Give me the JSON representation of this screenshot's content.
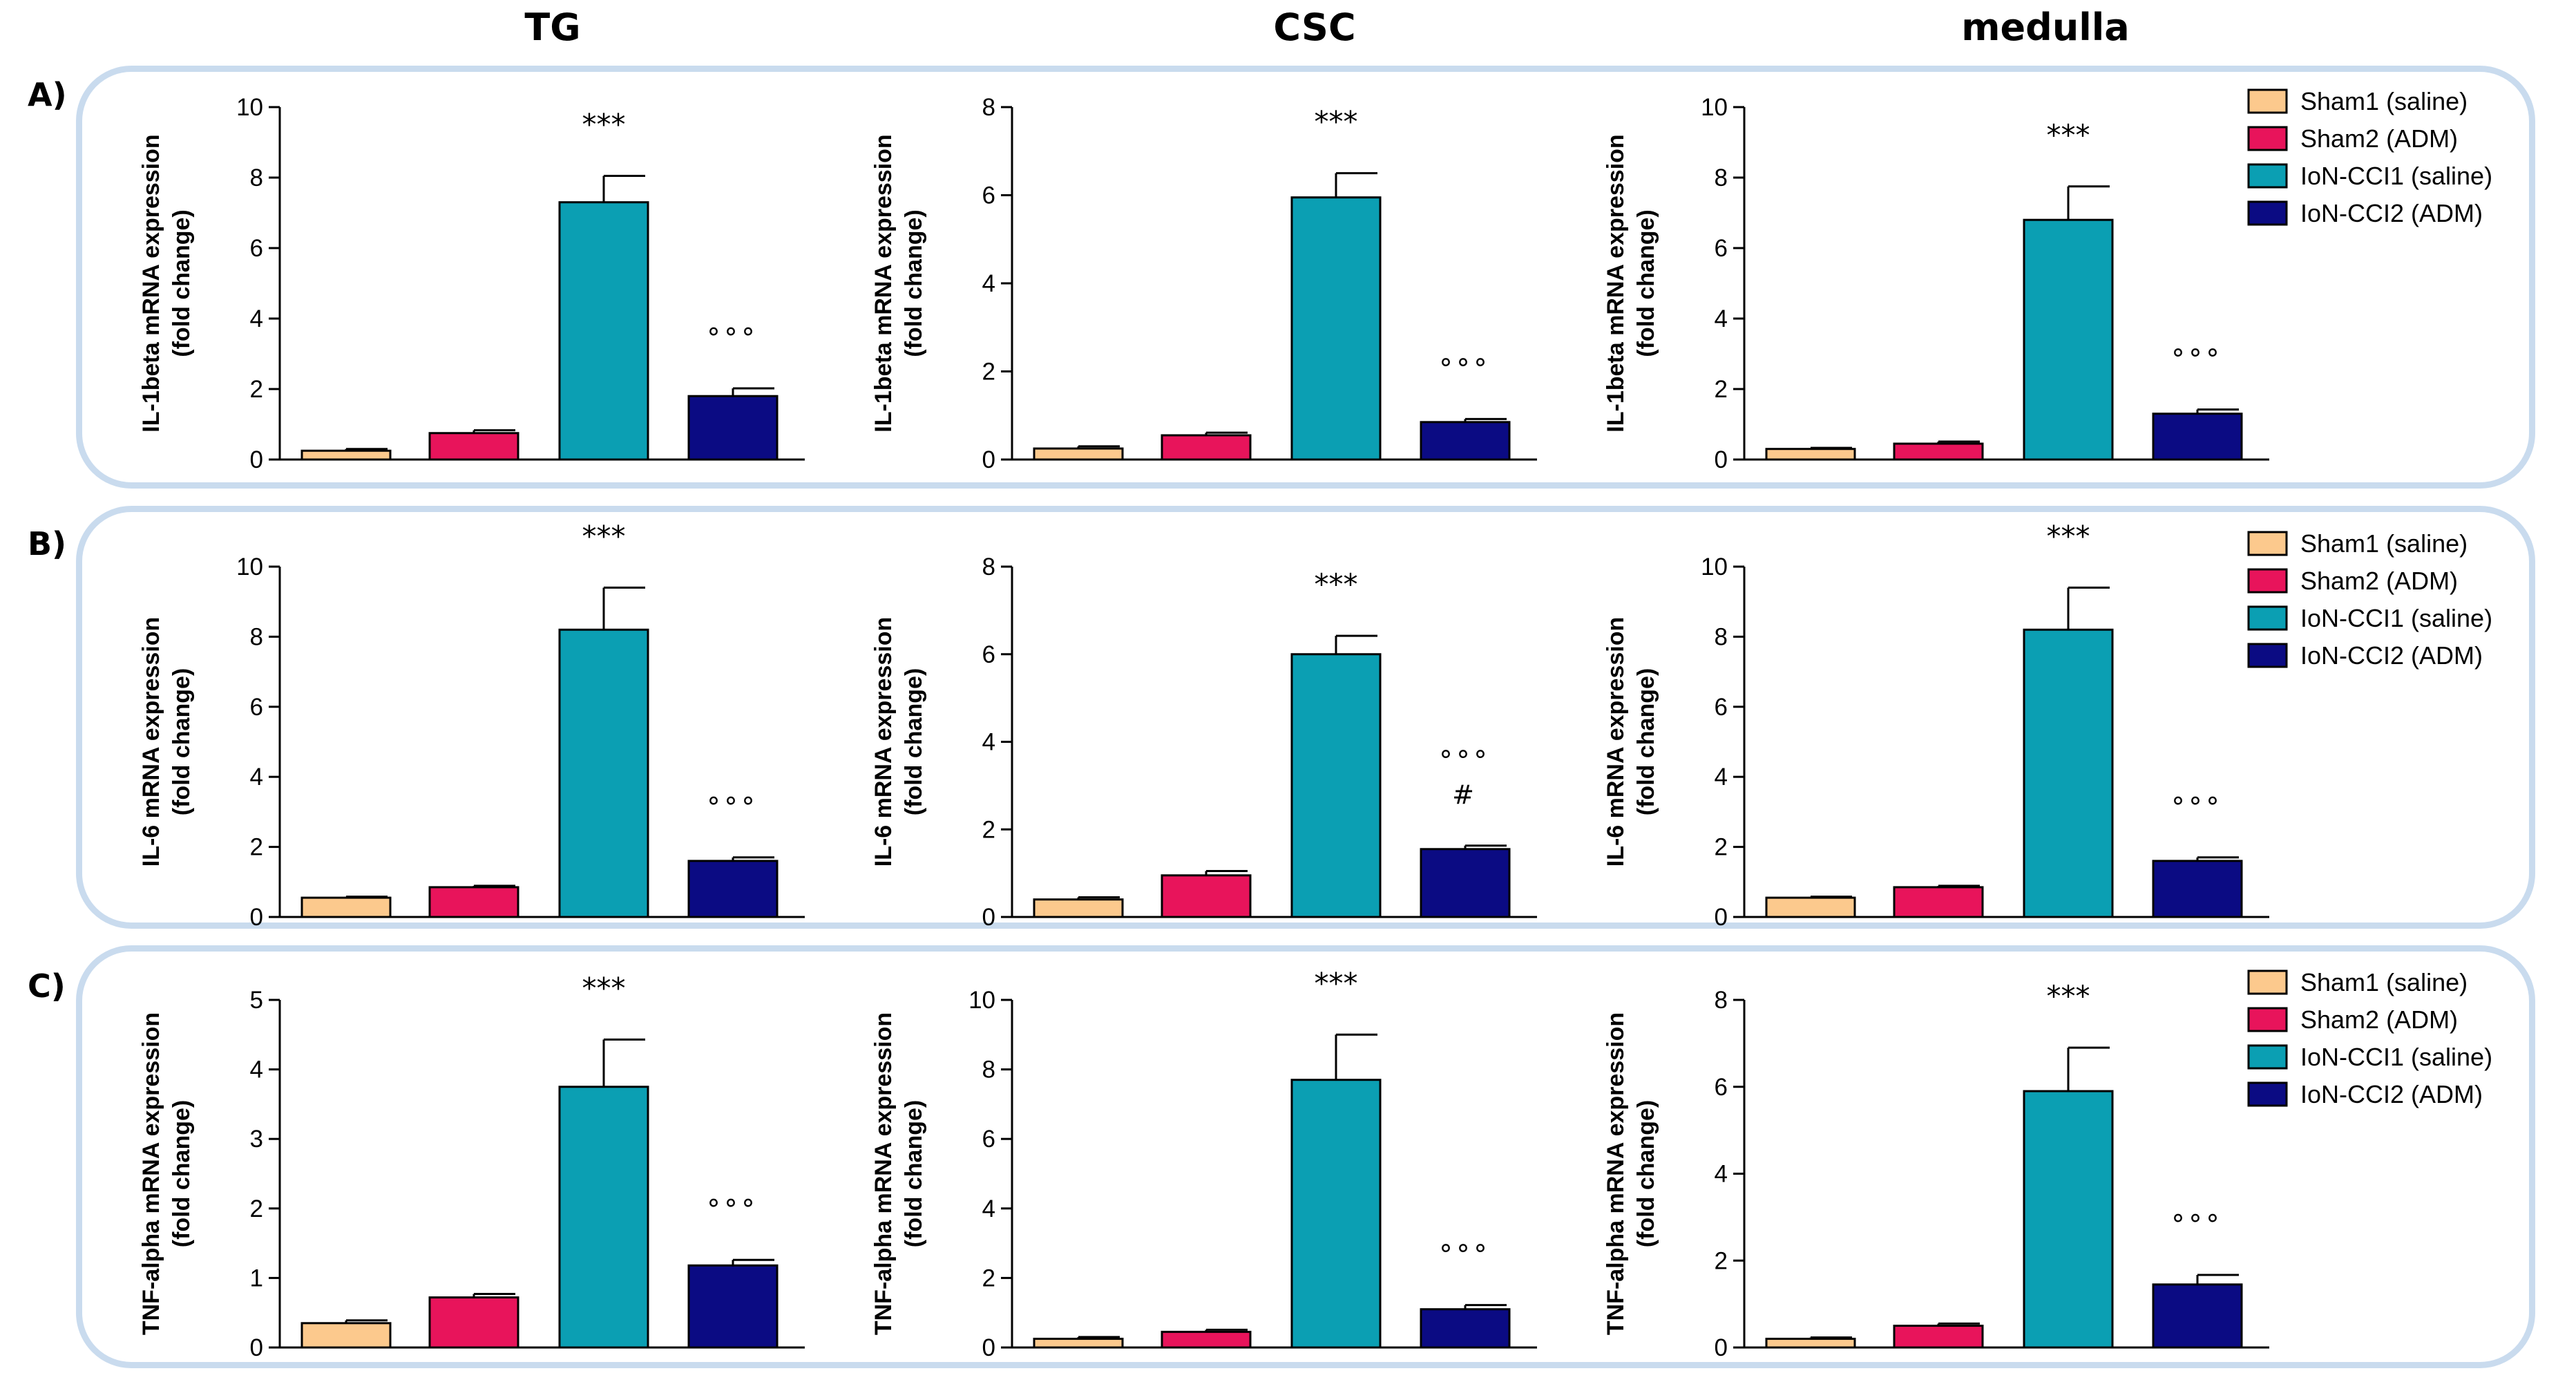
{
  "columns": [
    "TG",
    "CSC",
    "medulla"
  ],
  "rows": [
    "A)",
    "B)",
    "C)"
  ],
  "legend": [
    {
      "label": "Sham1 (saline)",
      "color": "#fcc98d"
    },
    {
      "label": "Sham2 (ADM)",
      "color": "#e8145b"
    },
    {
      "label": "IoN-CCI1 (saline)",
      "color": "#0b9fb3"
    },
    {
      "label": "IoN-CCI2 (ADM)",
      "color": "#0b0b83"
    }
  ],
  "chart_data": [
    {
      "type": "bar",
      "row": "A)",
      "column": "TG",
      "ylabel": [
        "IL-1beta mRNA expression",
        "(fold change)"
      ],
      "ylim": [
        0,
        10
      ],
      "yticks": [
        0,
        2,
        4,
        6,
        8,
        10
      ],
      "categories": [
        "Sham1 (saline)",
        "Sham2 (ADM)",
        "IoN-CCI1 (saline)",
        "IoN-CCI2 (ADM)"
      ],
      "values": [
        0.25,
        0.75,
        7.3,
        1.8
      ],
      "errors": [
        0.05,
        0.08,
        0.75,
        0.22
      ],
      "annotations": [
        "",
        "",
        "***",
        "°°°"
      ]
    },
    {
      "type": "bar",
      "row": "A)",
      "column": "CSC",
      "ylabel": [
        "IL-1beta mRNA expression",
        "(fold change)"
      ],
      "ylim": [
        0,
        8
      ],
      "yticks": [
        0,
        2,
        4,
        6,
        8
      ],
      "categories": [
        "Sham1 (saline)",
        "Sham2 (ADM)",
        "IoN-CCI1 (saline)",
        "IoN-CCI2 (ADM)"
      ],
      "values": [
        0.25,
        0.55,
        5.95,
        0.85
      ],
      "errors": [
        0.05,
        0.06,
        0.55,
        0.07
      ],
      "annotations": [
        "",
        "",
        "***",
        "°°°"
      ]
    },
    {
      "type": "bar",
      "row": "A)",
      "column": "medulla",
      "ylabel": [
        "IL-1beta mRNA expression",
        "(fold change)"
      ],
      "ylim": [
        0,
        10
      ],
      "yticks": [
        0,
        2,
        4,
        6,
        8,
        10
      ],
      "categories": [
        "Sham1 (saline)",
        "Sham2 (ADM)",
        "IoN-CCI1 (saline)",
        "IoN-CCI2 (ADM)"
      ],
      "values": [
        0.3,
        0.45,
        6.8,
        1.3
      ],
      "errors": [
        0.03,
        0.06,
        0.95,
        0.12
      ],
      "annotations": [
        "",
        "",
        "***",
        "°°°"
      ]
    },
    {
      "type": "bar",
      "row": "B)",
      "column": "TG",
      "ylabel": [
        "IL-6 mRNA expression",
        "(fold change)"
      ],
      "ylim": [
        0,
        10
      ],
      "yticks": [
        0,
        2,
        4,
        6,
        8,
        10
      ],
      "categories": [
        "Sham1 (saline)",
        "Sham2 (ADM)",
        "IoN-CCI1 (saline)",
        "IoN-CCI2 (ADM)"
      ],
      "values": [
        0.55,
        0.85,
        8.2,
        1.6
      ],
      "errors": [
        0.03,
        0.04,
        1.2,
        0.1
      ],
      "annotations": [
        "",
        "",
        "***",
        "°°°"
      ]
    },
    {
      "type": "bar",
      "row": "B)",
      "column": "CSC",
      "ylabel": [
        "IL-6 mRNA expression",
        "(fold change)"
      ],
      "ylim": [
        0,
        8
      ],
      "yticks": [
        0,
        2,
        4,
        6,
        8
      ],
      "categories": [
        "Sham1 (saline)",
        "Sham2 (ADM)",
        "IoN-CCI1 (saline)",
        "IoN-CCI2 (ADM)"
      ],
      "values": [
        0.4,
        0.95,
        6.0,
        1.55
      ],
      "errors": [
        0.05,
        0.1,
        0.42,
        0.08
      ],
      "annotations": [
        "",
        "",
        "***",
        "°°°|#"
      ]
    },
    {
      "type": "bar",
      "row": "B)",
      "column": "medulla",
      "ylabel": [
        "IL-6 mRNA expression",
        "(fold change)"
      ],
      "ylim": [
        0,
        10
      ],
      "yticks": [
        0,
        2,
        4,
        6,
        8,
        10
      ],
      "categories": [
        "Sham1 (saline)",
        "Sham2 (ADM)",
        "IoN-CCI1 (saline)",
        "IoN-CCI2 (ADM)"
      ],
      "values": [
        0.55,
        0.85,
        8.2,
        1.6
      ],
      "errors": [
        0.03,
        0.04,
        1.2,
        0.1
      ],
      "annotations": [
        "",
        "",
        "***",
        "°°°"
      ]
    },
    {
      "type": "bar",
      "row": "C)",
      "column": "TG",
      "ylabel": [
        "TNF-alpha mRNA expression",
        "(fold change)"
      ],
      "ylim": [
        0,
        5
      ],
      "yticks": [
        0,
        1,
        2,
        3,
        4,
        5
      ],
      "categories": [
        "Sham1 (saline)",
        "Sham2 (ADM)",
        "IoN-CCI1 (saline)",
        "IoN-CCI2 (ADM)"
      ],
      "values": [
        0.35,
        0.72,
        3.75,
        1.18
      ],
      "errors": [
        0.04,
        0.05,
        0.68,
        0.08
      ],
      "annotations": [
        "",
        "",
        "***",
        "°°°"
      ]
    },
    {
      "type": "bar",
      "row": "C)",
      "column": "CSC",
      "ylabel": [
        "TNF-alpha mRNA expression",
        "(fold change)"
      ],
      "ylim": [
        0,
        10
      ],
      "yticks": [
        0,
        2,
        4,
        6,
        8,
        10
      ],
      "categories": [
        "Sham1 (saline)",
        "Sham2 (ADM)",
        "IoN-CCI1 (saline)",
        "IoN-CCI2 (ADM)"
      ],
      "values": [
        0.25,
        0.45,
        7.7,
        1.1
      ],
      "errors": [
        0.05,
        0.06,
        1.3,
        0.12
      ],
      "annotations": [
        "",
        "",
        "***",
        "°°°"
      ]
    },
    {
      "type": "bar",
      "row": "C)",
      "column": "medulla",
      "ylabel": [
        "TNF-alpha mRNA expression",
        "(fold change)"
      ],
      "ylim": [
        0,
        8
      ],
      "yticks": [
        0,
        2,
        4,
        6,
        8
      ],
      "categories": [
        "Sham1 (saline)",
        "Sham2 (ADM)",
        "IoN-CCI1 (saline)",
        "IoN-CCI2 (ADM)"
      ],
      "values": [
        0.2,
        0.5,
        5.9,
        1.45
      ],
      "errors": [
        0.03,
        0.05,
        1.0,
        0.22
      ],
      "annotations": [
        "",
        "",
        "***",
        "°°°"
      ]
    }
  ]
}
